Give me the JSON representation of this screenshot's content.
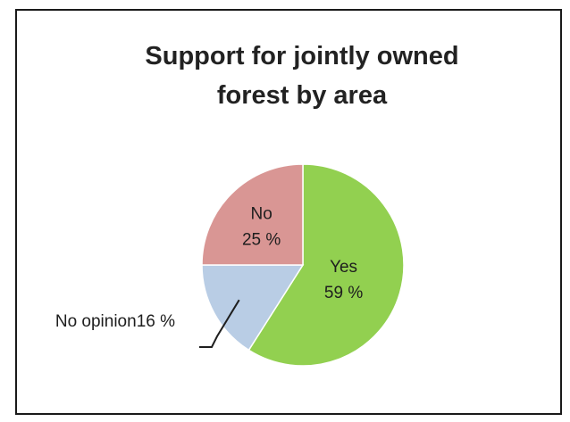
{
  "chart_data": {
    "type": "pie",
    "title_lines": [
      "Support for jointly owned",
      "forest by area"
    ],
    "slices": [
      {
        "label": "Yes",
        "value": 59,
        "value_label": "59 %",
        "color": "#92d050"
      },
      {
        "label": "No opinion",
        "value": 16,
        "value_label": "16 %",
        "color": "#b9cde5"
      },
      {
        "label": "No",
        "value": 25,
        "value_label": "25 %",
        "color": "#d99694"
      }
    ],
    "legend": "none",
    "border_color": "#1a1a1a"
  }
}
